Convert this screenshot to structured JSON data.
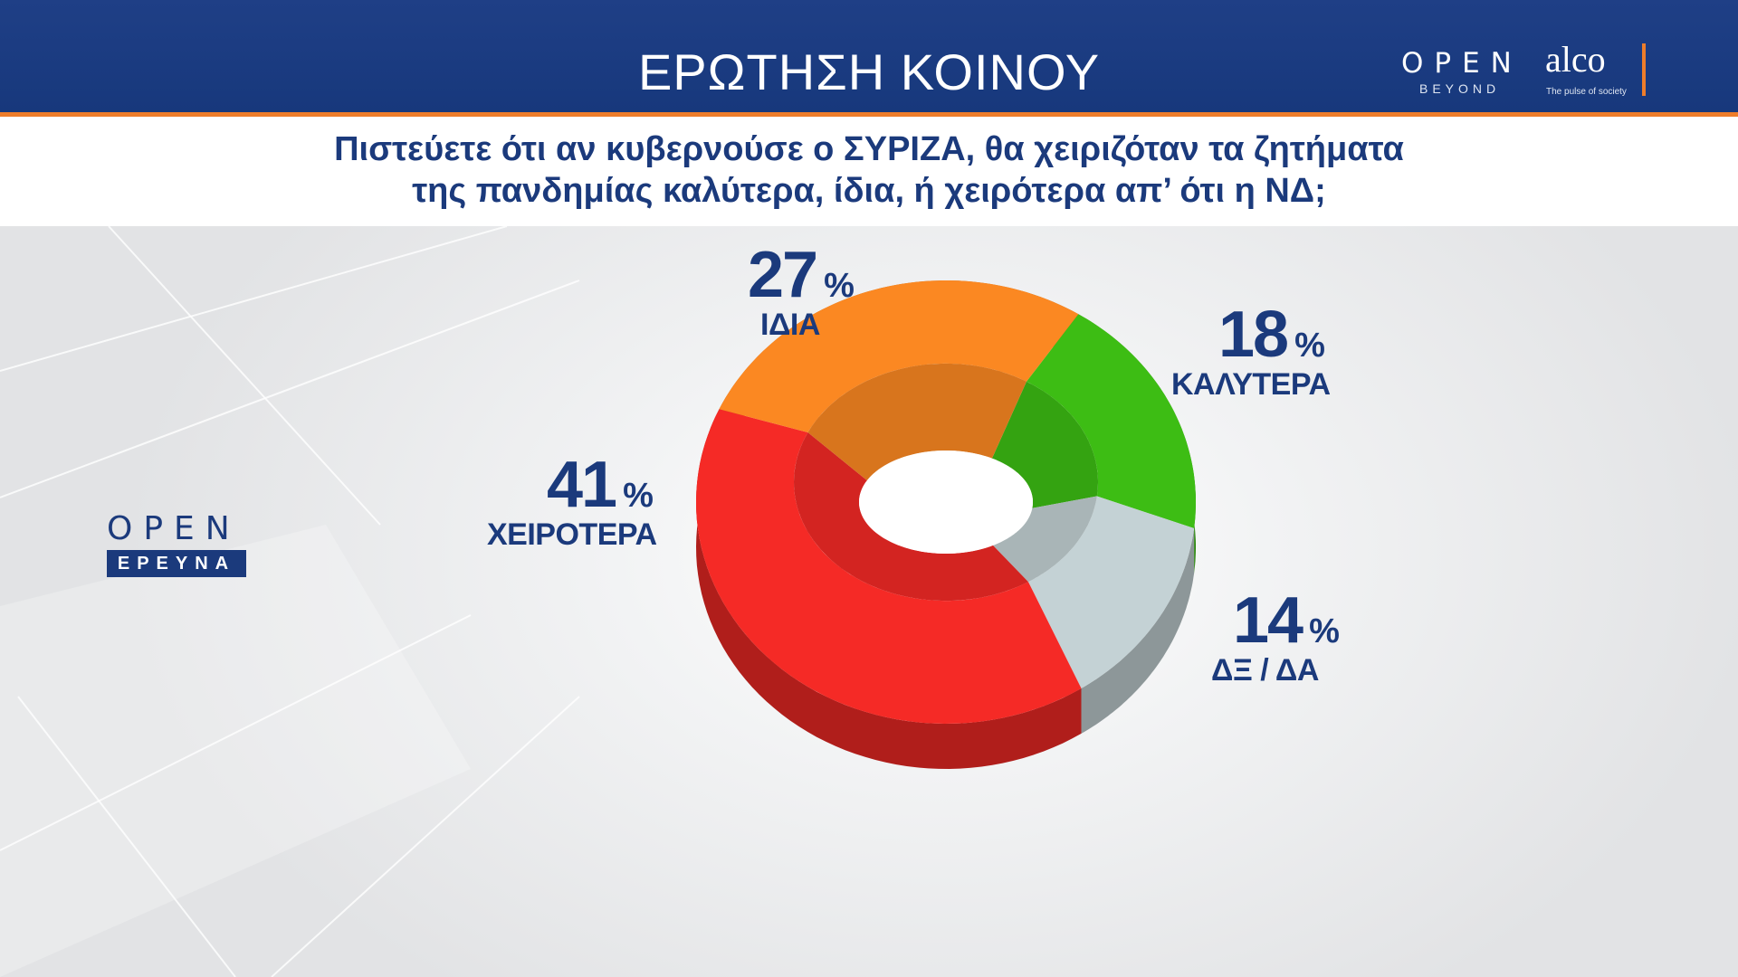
{
  "header": {
    "title": "ΕΡΩΤΗΣΗ ΚΟΙΝΟΥ",
    "brand_open": "OPEN",
    "brand_beyond": "BEYOND",
    "brand_alco": "alco",
    "brand_tagline": "The pulse of society"
  },
  "question": {
    "line1": "Πιστεύετε ότι αν κυβερνούσε ο ΣΥΡΙΖΑ, θα χειριζόταν τα ζητήματα",
    "line2": "της πανδημίας καλύτερα, ίδια, ή χειρότερα απ’ ότι η ΝΔ;"
  },
  "side_logo": {
    "word": "OPEN",
    "badge": "ΕΡΕΥΝΑ"
  },
  "colors": {
    "accent": "#ee7d2a",
    "brand": "#1b3a7c"
  },
  "chart_data": {
    "type": "pie",
    "style": "3d-donut",
    "unit": "%",
    "slices": [
      {
        "label": "ΚΑΛΥΤΕΡΑ",
        "value": 18,
        "color": "#3dbd14"
      },
      {
        "label": "ΔΞ / ΔΑ",
        "value": 14,
        "color": "#c4d2d5"
      },
      {
        "label": "ΧΕΙΡΟΤΕΡΑ",
        "value": 41,
        "color": "#f52a26"
      },
      {
        "label": "ΙΔΙΑ",
        "value": 27,
        "color": "#fb8822"
      }
    ]
  }
}
